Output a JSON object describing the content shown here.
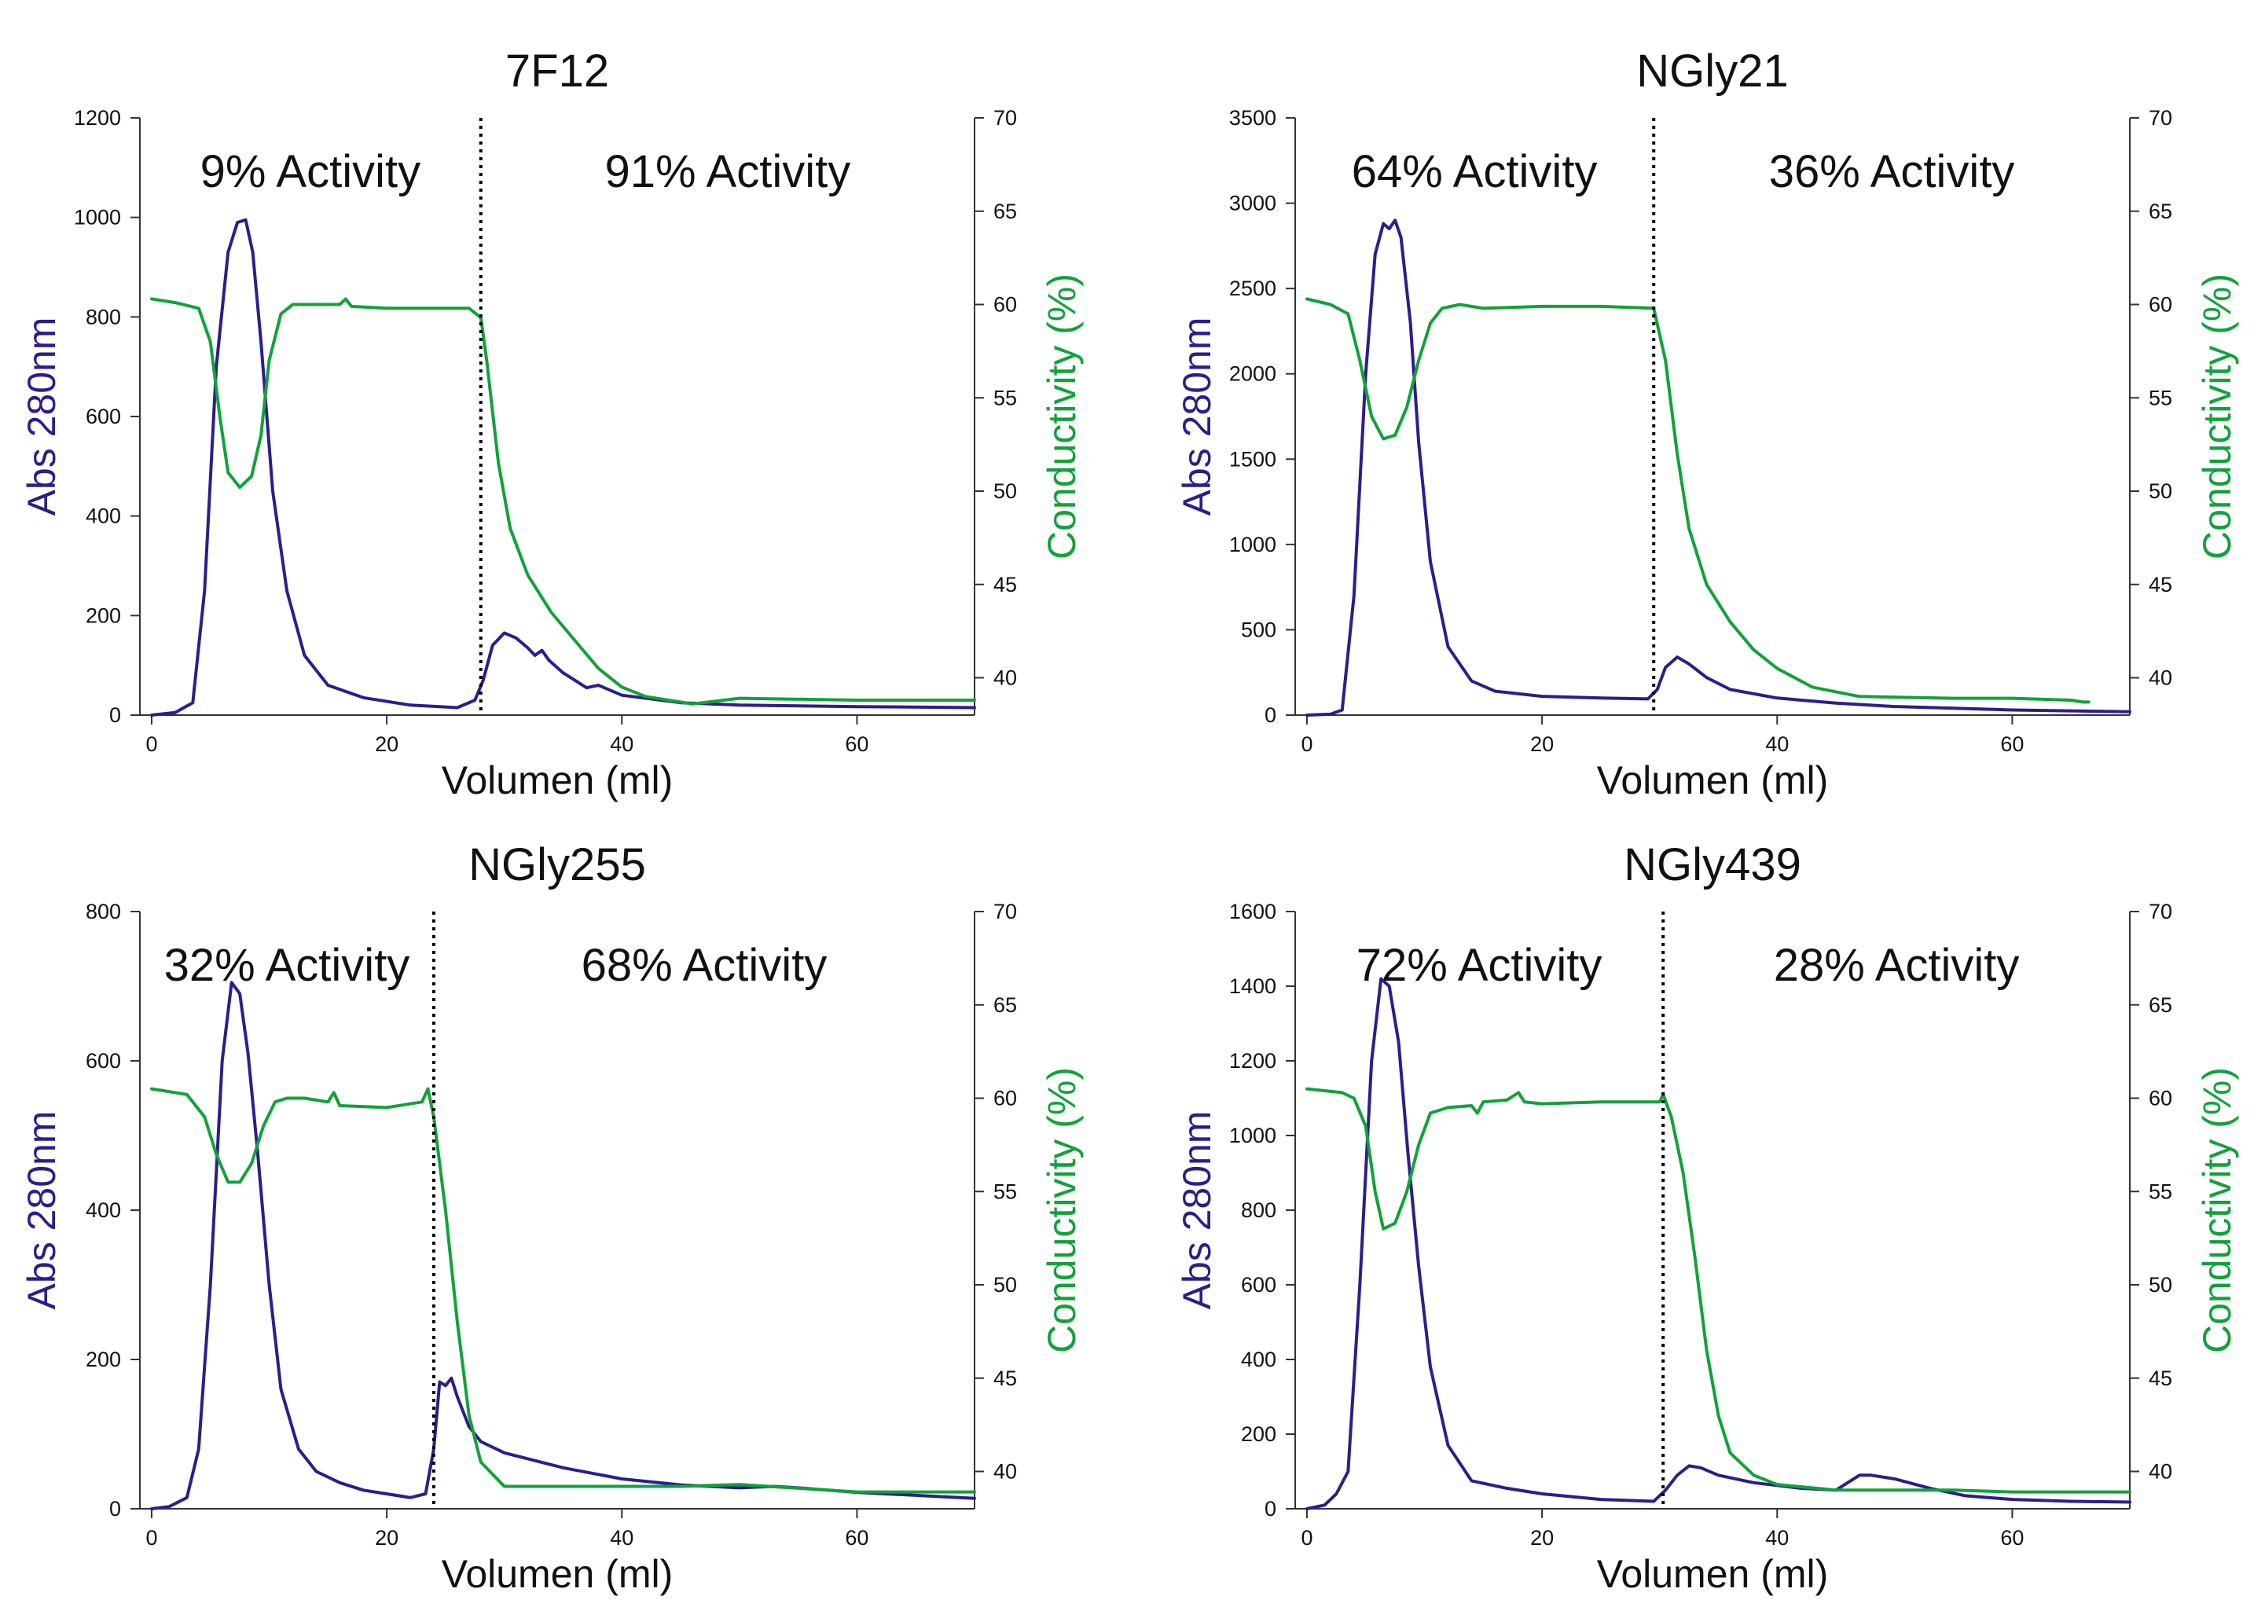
{
  "colors": {
    "absorbance": "#2b1e8c",
    "conductivity": "#11a23a",
    "axis": "#333333",
    "text": "#111111"
  },
  "chart_data": [
    {
      "type": "line",
      "title": "7F12",
      "xlabel": "Volumen (ml)",
      "ylabel": "Abs 280nm",
      "y2label": "Conductivity (%)",
      "xlim": [
        -1,
        70
      ],
      "ylim": [
        0,
        1200
      ],
      "y2lim": [
        38,
        70
      ],
      "xticks": [
        0,
        20,
        40,
        60
      ],
      "yticks": [
        0,
        200,
        400,
        600,
        800,
        1000,
        1200
      ],
      "y2ticks": [
        40,
        45,
        50,
        55,
        60,
        65,
        70
      ],
      "divider_x": 28,
      "annotations": [
        "9% Activity",
        "91% Activity"
      ],
      "series": [
        {
          "name": "Abs 280nm",
          "axis": "left",
          "x": [
            0,
            2,
            3.5,
            4.5,
            5.5,
            6.5,
            7.3,
            8,
            8.6,
            9.3,
            10.3,
            11.5,
            13,
            15,
            18,
            22,
            26,
            27.5,
            28.2,
            29,
            30,
            31,
            32,
            32.6,
            33.2,
            33.8,
            35,
            37,
            38,
            40,
            45,
            50,
            60,
            70
          ],
          "y": [
            0,
            5,
            25,
            250,
            700,
            930,
            990,
            995,
            930,
            750,
            450,
            250,
            120,
            60,
            35,
            20,
            15,
            30,
            70,
            140,
            165,
            155,
            135,
            120,
            130,
            110,
            85,
            55,
            60,
            40,
            25,
            20,
            17,
            15
          ]
        },
        {
          "name": "Conductivity (%)",
          "axis": "right",
          "x": [
            0,
            2,
            4,
            5,
            5.8,
            6.5,
            7.5,
            8.5,
            9.3,
            10,
            11,
            12,
            14,
            16,
            16.5,
            17,
            20,
            24,
            27,
            28,
            28.5,
            29.5,
            30.5,
            32,
            34,
            36,
            38,
            40,
            42,
            46,
            50,
            60,
            70
          ],
          "y": [
            60.3,
            60.1,
            59.8,
            58,
            54,
            51,
            50.2,
            50.8,
            53,
            57,
            59.5,
            60,
            60,
            60,
            60.3,
            59.9,
            59.8,
            59.8,
            59.8,
            59.3,
            57,
            51.5,
            48,
            45.5,
            43.5,
            42,
            40.5,
            39.5,
            39,
            38.6,
            38.9,
            38.8,
            38.8
          ]
        }
      ]
    },
    {
      "type": "line",
      "title": "NGly21",
      "xlabel": "Volumen (ml)",
      "ylabel": "Abs 280nm",
      "y2label": "Conductivity (%)",
      "xlim": [
        -1,
        70
      ],
      "ylim": [
        0,
        3500
      ],
      "y2lim": [
        38,
        70
      ],
      "xticks": [
        0,
        20,
        40,
        60
      ],
      "yticks": [
        0,
        500,
        1000,
        1500,
        2000,
        2500,
        3000,
        3500
      ],
      "y2ticks": [
        40,
        45,
        50,
        55,
        60,
        65,
        70
      ],
      "divider_x": 29.5,
      "annotations": [
        "64% Activity",
        "36% Activity"
      ],
      "series": [
        {
          "name": "Abs 280nm",
          "axis": "left",
          "x": [
            0,
            2,
            3,
            4,
            5,
            5.8,
            6.5,
            7,
            7.5,
            8,
            8.8,
            9.5,
            10.5,
            12,
            14,
            16,
            20,
            25,
            29,
            29.8,
            30.5,
            31.5,
            32.5,
            34,
            36,
            40,
            45,
            50,
            60,
            70
          ],
          "y": [
            0,
            5,
            30,
            700,
            2000,
            2700,
            2880,
            2850,
            2900,
            2800,
            2300,
            1600,
            900,
            400,
            200,
            140,
            110,
            100,
            95,
            150,
            280,
            340,
            300,
            220,
            150,
            100,
            70,
            50,
            30,
            20
          ]
        },
        {
          "name": "Conductivity (%)",
          "axis": "right",
          "x": [
            0,
            2,
            3.5,
            4.5,
            5.5,
            6.5,
            7.5,
            8.5,
            9.5,
            10.5,
            11.5,
            13,
            15,
            20,
            25,
            29.5,
            30.5,
            31.5,
            32.5,
            34,
            36,
            38,
            40,
            43,
            47,
            55,
            60,
            65,
            66,
            66.5
          ],
          "y": [
            60.3,
            60,
            59.5,
            57,
            54,
            52.8,
            53,
            54.5,
            57,
            59,
            59.8,
            60,
            59.8,
            59.9,
            59.9,
            59.8,
            57,
            52,
            48,
            45,
            43,
            41.5,
            40.5,
            39.5,
            39,
            38.9,
            38.9,
            38.8,
            38.7,
            38.7
          ]
        }
      ]
    },
    {
      "type": "line",
      "title": "NGly255",
      "xlabel": "Volumen (ml)",
      "ylabel": "Abs 280nm",
      "y2label": "Conductivity (%)",
      "xlim": [
        -1,
        70
      ],
      "ylim": [
        0,
        800
      ],
      "y2lim": [
        38,
        70
      ],
      "xticks": [
        0,
        20,
        40,
        60
      ],
      "yticks": [
        0,
        200,
        400,
        600,
        800
      ],
      "y2ticks": [
        40,
        45,
        50,
        55,
        60,
        65,
        70
      ],
      "divider_x": 24,
      "annotations": [
        "32% Activity",
        "68% Activity"
      ],
      "series": [
        {
          "name": "Abs 280nm",
          "axis": "left",
          "x": [
            0,
            1.5,
            3,
            4,
            5,
            6,
            6.8,
            7.5,
            8.2,
            9,
            10,
            11,
            12.5,
            14,
            16,
            18,
            20,
            22,
            23.3,
            24,
            24.5,
            25,
            25.5,
            26,
            27,
            28,
            30,
            35,
            40,
            45,
            50,
            53,
            55,
            60,
            65,
            70
          ],
          "y": [
            0,
            3,
            15,
            80,
            300,
            600,
            705,
            690,
            610,
            480,
            300,
            160,
            80,
            50,
            35,
            25,
            20,
            15,
            20,
            80,
            170,
            165,
            175,
            150,
            110,
            90,
            75,
            55,
            40,
            32,
            28,
            30,
            28,
            22,
            18,
            14
          ]
        },
        {
          "name": "Conductivity (%)",
          "axis": "right",
          "x": [
            0,
            3,
            4.5,
            5.5,
            6.5,
            7.5,
            8.5,
            9.5,
            10.5,
            11.5,
            13,
            15,
            15.5,
            16,
            20,
            23,
            23.5,
            24,
            25,
            26,
            27,
            28,
            30,
            35,
            40,
            45,
            50,
            55,
            60,
            65,
            70
          ],
          "y": [
            60.5,
            60.2,
            59,
            57,
            55.5,
            55.5,
            56.5,
            58.5,
            59.8,
            60,
            60,
            59.8,
            60.3,
            59.6,
            59.5,
            59.8,
            60.5,
            59,
            54,
            48,
            43,
            40.5,
            39.2,
            39.2,
            39.2,
            39.2,
            39.3,
            39.1,
            38.9,
            38.9,
            38.9
          ]
        }
      ]
    },
    {
      "type": "line",
      "title": "NGly439",
      "xlabel": "Volumen (ml)",
      "ylabel": "Abs 280nm",
      "y2label": "Conductivity (%)",
      "xlim": [
        -1,
        70
      ],
      "ylim": [
        0,
        1600
      ],
      "y2lim": [
        38,
        70
      ],
      "xticks": [
        0,
        20,
        40,
        60
      ],
      "yticks": [
        0,
        200,
        400,
        600,
        800,
        1000,
        1200,
        1400,
        1600
      ],
      "y2ticks": [
        40,
        45,
        50,
        55,
        60,
        65,
        70
      ],
      "divider_x": 30.3,
      "annotations": [
        "72% Activity",
        "28% Activity"
      ],
      "series": [
        {
          "name": "Abs 280nm",
          "axis": "left",
          "x": [
            0,
            1.5,
            2.5,
            3.5,
            4.5,
            5.5,
            6.3,
            7,
            7.8,
            8.6,
            9.5,
            10.5,
            12,
            14,
            17,
            20,
            25,
            29.5,
            30.5,
            31.5,
            32.5,
            33.5,
            35,
            38,
            42,
            45,
            46,
            47,
            48,
            50,
            53,
            56,
            60,
            65,
            70
          ],
          "y": [
            0,
            10,
            40,
            100,
            600,
            1200,
            1420,
            1400,
            1250,
            950,
            650,
            380,
            170,
            75,
            55,
            40,
            25,
            20,
            50,
            90,
            115,
            110,
            90,
            70,
            55,
            50,
            70,
            90,
            90,
            80,
            55,
            35,
            25,
            20,
            18
          ]
        },
        {
          "name": "Conductivity (%)",
          "axis": "right",
          "x": [
            0,
            3,
            4,
            5,
            5.8,
            6.5,
            7.5,
            8.5,
            9.5,
            10.5,
            12,
            14,
            14.5,
            15,
            17,
            18,
            18.5,
            20,
            25,
            30,
            30.3,
            31,
            32,
            33,
            34,
            35,
            36,
            38,
            40,
            45,
            50,
            55,
            60,
            70
          ],
          "y": [
            60.5,
            60.3,
            60,
            58.5,
            55,
            53,
            53.3,
            55,
            57.5,
            59.2,
            59.5,
            59.6,
            59.2,
            59.8,
            59.9,
            60.3,
            59.8,
            59.7,
            59.8,
            59.8,
            60.2,
            59,
            56,
            51.5,
            46.5,
            43,
            41,
            39.8,
            39.3,
            39,
            39,
            39,
            38.9,
            38.9
          ]
        }
      ]
    }
  ]
}
